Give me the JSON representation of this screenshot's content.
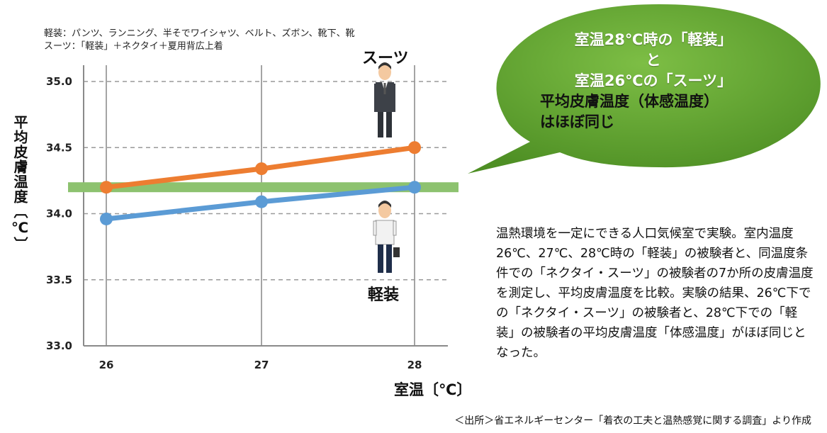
{
  "legend": {
    "line1": "軽装：パンツ、ランニング、半そでワイシャツ、ベルト、ズボン、靴下、靴",
    "line2": "スーツ：「軽装」＋ネクタイ＋夏用背広上着"
  },
  "bubble": {
    "line1": "室温28℃時の「軽装」",
    "line2": "と",
    "line3": "室温26℃の「スーツ」",
    "line4": "平均皮膚温度（体感温度）",
    "line5": "はほぼ同じ"
  },
  "description": "温熱環境を一定にできる人口気候室で実験。室内温度26℃、27℃、28℃時の「軽装」の被験者と、同温度条件での「ネクタイ・スーツ」の被験者の7か所の皮膚温度を測定し、平均皮膚温度を比較。実験の結果、26℃下での「ネクタイ・スーツ」の被験者と、28℃下での「軽装」の被験者の平均皮膚温度「体感温度」がほぼ同じとなった。",
  "source": "＜出所＞省エネルギーセンター「着衣の工夫と温熱感覚に関する調査」より作成",
  "colors": {
    "suit": "#ED7D31",
    "casual": "#5B9BD5",
    "reference": "#8DC26F",
    "bubble": "#5A9A2E"
  },
  "chart_data": {
    "type": "line",
    "x": [
      26,
      27,
      28
    ],
    "xlabel": "室温〔℃〕",
    "ylabel": "平均皮膚温度〔℃〕",
    "ylim": [
      33.0,
      35.0
    ],
    "yticks": [
      "33.0",
      "33.5",
      "34.0",
      "34.5",
      "35.0"
    ],
    "xticks": [
      "26",
      "27",
      "28"
    ],
    "grid": true,
    "reference_line": 34.2,
    "series": [
      {
        "name": "スーツ",
        "values": [
          34.2,
          34.34,
          34.5
        ]
      },
      {
        "name": "軽装",
        "values": [
          33.96,
          34.09,
          34.2
        ]
      }
    ]
  }
}
